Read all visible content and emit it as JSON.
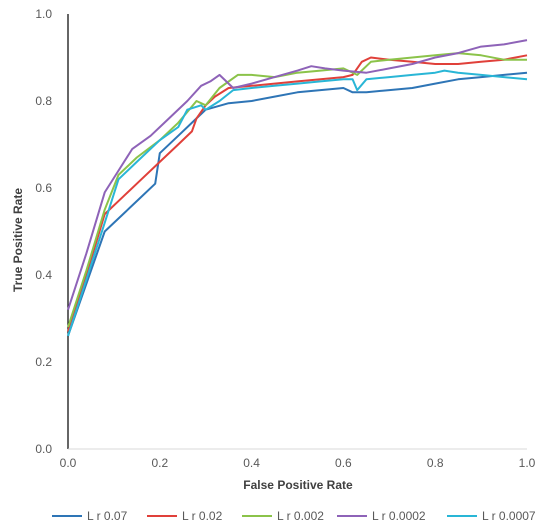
{
  "chart_data": {
    "type": "line",
    "xlabel": "False Positive Rate",
    "ylabel": "True Positive Rate",
    "xlim": [
      0,
      1
    ],
    "ylim": [
      0,
      1
    ],
    "xticks": [
      "0.0",
      "0.2",
      "0.4",
      "0.6",
      "0.8",
      "1.0"
    ],
    "yticks": [
      "0.0",
      "0.2",
      "0.4",
      "0.6",
      "0.8",
      "1.0"
    ],
    "grid": false,
    "legend_position": "bottom",
    "series": [
      {
        "name": "L r 0.07",
        "color": "#2E75B6",
        "points": [
          [
            0,
            0.26
          ],
          [
            0.04,
            0.38
          ],
          [
            0.08,
            0.5
          ],
          [
            0.12,
            0.54
          ],
          [
            0.15,
            0.57
          ],
          [
            0.19,
            0.61
          ],
          [
            0.2,
            0.68
          ],
          [
            0.24,
            0.72
          ],
          [
            0.28,
            0.76
          ],
          [
            0.3,
            0.78
          ],
          [
            0.35,
            0.795
          ],
          [
            0.4,
            0.8
          ],
          [
            0.45,
            0.81
          ],
          [
            0.5,
            0.82
          ],
          [
            0.55,
            0.825
          ],
          [
            0.6,
            0.83
          ],
          [
            0.62,
            0.82
          ],
          [
            0.65,
            0.82
          ],
          [
            0.7,
            0.825
          ],
          [
            0.75,
            0.83
          ],
          [
            0.8,
            0.84
          ],
          [
            0.85,
            0.85
          ],
          [
            0.9,
            0.855
          ],
          [
            0.95,
            0.86
          ],
          [
            1.0,
            0.865
          ]
        ]
      },
      {
        "name": "L r 0.02",
        "color": "#E0403A",
        "points": [
          [
            0,
            0.27
          ],
          [
            0.04,
            0.4
          ],
          [
            0.08,
            0.54
          ],
          [
            0.12,
            0.58
          ],
          [
            0.16,
            0.62
          ],
          [
            0.2,
            0.66
          ],
          [
            0.24,
            0.7
          ],
          [
            0.27,
            0.73
          ],
          [
            0.28,
            0.76
          ],
          [
            0.3,
            0.79
          ],
          [
            0.32,
            0.81
          ],
          [
            0.35,
            0.83
          ],
          [
            0.4,
            0.835
          ],
          [
            0.45,
            0.84
          ],
          [
            0.5,
            0.845
          ],
          [
            0.55,
            0.85
          ],
          [
            0.6,
            0.855
          ],
          [
            0.62,
            0.86
          ],
          [
            0.64,
            0.89
          ],
          [
            0.66,
            0.9
          ],
          [
            0.7,
            0.895
          ],
          [
            0.75,
            0.89
          ],
          [
            0.8,
            0.885
          ],
          [
            0.85,
            0.885
          ],
          [
            0.9,
            0.89
          ],
          [
            0.95,
            0.895
          ],
          [
            1.0,
            0.905
          ]
        ]
      },
      {
        "name": "L r 0.002",
        "color": "#8BC34A",
        "points": [
          [
            0,
            0.28
          ],
          [
            0.04,
            0.41
          ],
          [
            0.08,
            0.55
          ],
          [
            0.11,
            0.63
          ],
          [
            0.15,
            0.67
          ],
          [
            0.2,
            0.71
          ],
          [
            0.24,
            0.75
          ],
          [
            0.28,
            0.8
          ],
          [
            0.3,
            0.79
          ],
          [
            0.33,
            0.83
          ],
          [
            0.37,
            0.86
          ],
          [
            0.4,
            0.86
          ],
          [
            0.45,
            0.855
          ],
          [
            0.5,
            0.865
          ],
          [
            0.55,
            0.87
          ],
          [
            0.6,
            0.875
          ],
          [
            0.63,
            0.86
          ],
          [
            0.66,
            0.89
          ],
          [
            0.7,
            0.895
          ],
          [
            0.75,
            0.9
          ],
          [
            0.8,
            0.905
          ],
          [
            0.85,
            0.91
          ],
          [
            0.9,
            0.905
          ],
          [
            0.95,
            0.895
          ],
          [
            1.0,
            0.895
          ]
        ]
      },
      {
        "name": "L r 0.0002",
        "color": "#8E63B8",
        "points": [
          [
            0,
            0.32
          ],
          [
            0.04,
            0.45
          ],
          [
            0.08,
            0.59
          ],
          [
            0.11,
            0.64
          ],
          [
            0.14,
            0.69
          ],
          [
            0.18,
            0.72
          ],
          [
            0.22,
            0.76
          ],
          [
            0.26,
            0.8
          ],
          [
            0.29,
            0.835
          ],
          [
            0.31,
            0.845
          ],
          [
            0.33,
            0.86
          ],
          [
            0.36,
            0.83
          ],
          [
            0.4,
            0.84
          ],
          [
            0.45,
            0.855
          ],
          [
            0.5,
            0.87
          ],
          [
            0.53,
            0.88
          ],
          [
            0.56,
            0.875
          ],
          [
            0.6,
            0.87
          ],
          [
            0.65,
            0.865
          ],
          [
            0.7,
            0.875
          ],
          [
            0.75,
            0.885
          ],
          [
            0.8,
            0.9
          ],
          [
            0.85,
            0.91
          ],
          [
            0.9,
            0.925
          ],
          [
            0.95,
            0.93
          ],
          [
            1.0,
            0.94
          ]
        ]
      },
      {
        "name": "L r 0.0007",
        "color": "#29B6D6",
        "points": [
          [
            0,
            0.26
          ],
          [
            0.04,
            0.39
          ],
          [
            0.08,
            0.52
          ],
          [
            0.11,
            0.62
          ],
          [
            0.15,
            0.66
          ],
          [
            0.2,
            0.71
          ],
          [
            0.24,
            0.74
          ],
          [
            0.26,
            0.78
          ],
          [
            0.29,
            0.79
          ],
          [
            0.3,
            0.78
          ],
          [
            0.33,
            0.8
          ],
          [
            0.36,
            0.825
          ],
          [
            0.4,
            0.83
          ],
          [
            0.45,
            0.835
          ],
          [
            0.5,
            0.84
          ],
          [
            0.55,
            0.845
          ],
          [
            0.6,
            0.85
          ],
          [
            0.62,
            0.85
          ],
          [
            0.63,
            0.825
          ],
          [
            0.65,
            0.85
          ],
          [
            0.7,
            0.855
          ],
          [
            0.75,
            0.86
          ],
          [
            0.8,
            0.865
          ],
          [
            0.82,
            0.87
          ],
          [
            0.85,
            0.865
          ],
          [
            0.9,
            0.86
          ],
          [
            0.95,
            0.855
          ],
          [
            1.0,
            0.85
          ]
        ]
      }
    ]
  }
}
